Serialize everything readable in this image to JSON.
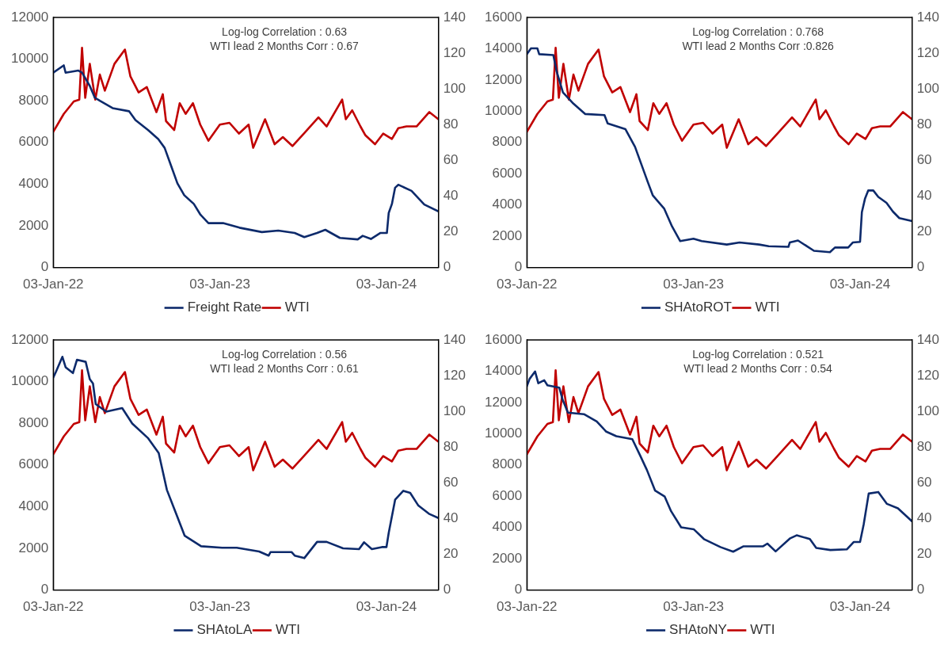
{
  "chart_data": [
    {
      "type": "line",
      "annotations": [
        "Log-log Correlation : 0.63",
        "WTI lead 2 Months Corr : 0.67"
      ],
      "legend": "bottom",
      "grid": false,
      "marker": "none",
      "line_style": "solid",
      "xlim": [
        "2022-01-03",
        "2024-04-26"
      ],
      "xticks": [
        {
          "value": "2022-01-03",
          "label": "03-Jan-22"
        },
        {
          "value": "2023-01-03",
          "label": "03-Jan-23"
        },
        {
          "value": "2024-01-03",
          "label": "03-Jan-24"
        }
      ],
      "ylim": [
        0,
        12000
      ],
      "yticks": [
        0,
        2000,
        4000,
        6000,
        8000,
        10000,
        12000
      ],
      "y2lim": [
        0,
        140
      ],
      "y2ticks": [
        0,
        20,
        40,
        60,
        80,
        100,
        120,
        140
      ],
      "series": [
        {
          "name": "Freight Rate",
          "color": "#0d2a6b",
          "x": [
            "2022-01-03",
            "2022-01-26",
            "2022-01-30",
            "2022-02-27",
            "2022-03-07",
            "2022-03-24",
            "2022-04-04",
            "2022-04-15",
            "2022-05-13",
            "2022-06-18",
            "2022-07-02",
            "2022-07-30",
            "2022-08-21",
            "2022-09-04",
            "2022-09-18",
            "2022-10-02",
            "2022-10-17",
            "2022-11-07",
            "2022-11-21",
            "2022-12-09",
            "2023-01-10",
            "2023-02-15",
            "2023-04-05",
            "2023-05-11",
            "2023-06-16",
            "2023-07-07",
            "2023-08-04",
            "2023-08-22",
            "2023-09-23",
            "2023-11-01",
            "2023-11-12",
            "2023-11-30",
            "2023-12-21",
            "2024-01-04",
            "2024-01-08",
            "2024-01-15",
            "2024-01-22",
            "2024-01-29",
            "2024-02-27",
            "2024-03-26",
            "2024-04-26"
          ],
          "values": [
            9350,
            9700,
            9350,
            9450,
            9350,
            8710,
            8150,
            8000,
            7650,
            7500,
            7080,
            6590,
            6160,
            5740,
            4890,
            4040,
            3470,
            3050,
            2550,
            2130,
            2130,
            1910,
            1700,
            1770,
            1660,
            1460,
            1660,
            1810,
            1420,
            1350,
            1520,
            1370,
            1660,
            1660,
            2620,
            3050,
            3830,
            3970,
            3680,
            3020,
            2690
          ]
        },
        {
          "name": "WTI",
          "color": "#c00000",
          "axis": "y2",
          "x": [
            "2022-01-03",
            "2022-01-26",
            "2022-02-17",
            "2022-03-01",
            "2022-03-07",
            "2022-03-14",
            "2022-03-24",
            "2022-04-05",
            "2022-04-15",
            "2022-04-26",
            "2022-05-17",
            "2022-06-09",
            "2022-06-21",
            "2022-07-09",
            "2022-07-27",
            "2022-08-17",
            "2022-08-31",
            "2022-09-07",
            "2022-09-25",
            "2022-10-07",
            "2022-10-20",
            "2022-11-05",
            "2022-11-21",
            "2022-12-09",
            "2023-01-03",
            "2023-01-24",
            "2023-02-14",
            "2023-03-07",
            "2023-03-17",
            "2023-04-12",
            "2023-05-03",
            "2023-05-21",
            "2023-06-11",
            "2023-07-06",
            "2023-08-07",
            "2023-08-25",
            "2023-09-28",
            "2023-10-06",
            "2023-10-20",
            "2023-11-07",
            "2023-11-18",
            "2023-12-09",
            "2023-12-27",
            "2024-01-15",
            "2024-01-29",
            "2024-02-16",
            "2024-03-09",
            "2024-04-06",
            "2024-04-26"
          ],
          "values": [
            76,
            86,
            93,
            94,
            123,
            95,
            114,
            94,
            108,
            99,
            114,
            122,
            107,
            98,
            101,
            87,
            97,
            82,
            77,
            92,
            86,
            92,
            80,
            71,
            80,
            81,
            75,
            80,
            67,
            83,
            69,
            73,
            68,
            75,
            84,
            79,
            94,
            83,
            88,
            79,
            74,
            69,
            75,
            72,
            78,
            79,
            79,
            87,
            83
          ]
        }
      ]
    },
    {
      "type": "line",
      "annotations": [
        "Log-log Correlation : 0.768",
        "WTI lead 2 Months Corr :0.826"
      ],
      "legend": "bottom",
      "grid": false,
      "marker": "none",
      "line_style": "solid",
      "xlim": [
        "2022-01-03",
        "2024-04-26"
      ],
      "xticks": [
        {
          "value": "2022-01-03",
          "label": "03-Jan-22"
        },
        {
          "value": "2023-01-03",
          "label": "03-Jan-23"
        },
        {
          "value": "2024-01-03",
          "label": "03-Jan-24"
        }
      ],
      "ylim": [
        0,
        16000
      ],
      "yticks": [
        0,
        2000,
        4000,
        6000,
        8000,
        10000,
        12000,
        14000,
        16000
      ],
      "y2lim": [
        0,
        140
      ],
      "y2ticks": [
        0,
        20,
        40,
        60,
        80,
        100,
        120,
        140
      ],
      "series": [
        {
          "name": "SHAtoROT",
          "color": "#0d2a6b",
          "x": [
            "2022-01-03",
            "2022-01-12",
            "2022-01-26",
            "2022-01-30",
            "2022-03-02",
            "2022-03-09",
            "2022-03-23",
            "2022-04-13",
            "2022-05-11",
            "2022-06-22",
            "2022-06-29",
            "2022-08-07",
            "2022-08-28",
            "2022-09-11",
            "2022-09-25",
            "2022-10-06",
            "2022-10-31",
            "2022-11-17",
            "2022-12-05",
            "2023-01-03",
            "2023-01-21",
            "2023-03-17",
            "2023-04-14",
            "2023-05-27",
            "2023-06-17",
            "2023-07-30",
            "2023-08-02",
            "2023-08-20",
            "2023-09-24",
            "2023-10-29",
            "2023-11-09",
            "2023-12-08",
            "2023-12-18",
            "2024-01-03",
            "2024-01-07",
            "2024-01-14",
            "2024-01-21",
            "2024-02-01",
            "2024-02-12",
            "2024-03-01",
            "2024-03-15",
            "2024-03-29",
            "2024-04-26"
          ],
          "values": [
            13650,
            14020,
            14020,
            13650,
            13590,
            12570,
            11200,
            10540,
            9820,
            9750,
            9220,
            8850,
            7720,
            6590,
            5460,
            4610,
            3760,
            2630,
            1690,
            1840,
            1690,
            1470,
            1600,
            1470,
            1360,
            1320,
            1600,
            1730,
            1070,
            980,
            1280,
            1280,
            1600,
            1640,
            3540,
            4420,
            4930,
            4930,
            4520,
            4140,
            3580,
            3160,
            2970
          ]
        },
        {
          "name": "WTI",
          "color": "#c00000",
          "axis": "y2",
          "x": [
            "2022-01-03",
            "2022-01-26",
            "2022-02-17",
            "2022-03-01",
            "2022-03-07",
            "2022-03-14",
            "2022-03-24",
            "2022-04-05",
            "2022-04-15",
            "2022-04-26",
            "2022-05-17",
            "2022-06-09",
            "2022-06-21",
            "2022-07-09",
            "2022-07-27",
            "2022-08-17",
            "2022-08-31",
            "2022-09-07",
            "2022-09-25",
            "2022-10-07",
            "2022-10-20",
            "2022-11-05",
            "2022-11-21",
            "2022-12-09",
            "2023-01-03",
            "2023-01-24",
            "2023-02-14",
            "2023-03-07",
            "2023-03-17",
            "2023-04-12",
            "2023-05-03",
            "2023-05-21",
            "2023-06-11",
            "2023-07-06",
            "2023-08-07",
            "2023-08-25",
            "2023-09-28",
            "2023-10-06",
            "2023-10-20",
            "2023-11-07",
            "2023-11-18",
            "2023-12-09",
            "2023-12-27",
            "2024-01-15",
            "2024-01-29",
            "2024-02-16",
            "2024-03-09",
            "2024-04-06",
            "2024-04-26"
          ],
          "values": [
            76,
            86,
            93,
            94,
            123,
            95,
            114,
            94,
            108,
            99,
            114,
            122,
            107,
            98,
            101,
            87,
            97,
            82,
            77,
            92,
            86,
            92,
            80,
            71,
            80,
            81,
            75,
            80,
            67,
            83,
            69,
            73,
            68,
            75,
            84,
            79,
            94,
            83,
            88,
            79,
            74,
            69,
            75,
            72,
            78,
            79,
            79,
            87,
            83
          ]
        }
      ]
    },
    {
      "type": "line",
      "annotations": [
        "Log-log Correlation : 0.56",
        "WTI lead 2 Months Corr : 0.61"
      ],
      "legend": "bottom",
      "grid": false,
      "marker": "none",
      "line_style": "solid",
      "xlim": [
        "2022-01-03",
        "2024-04-26"
      ],
      "xticks": [
        {
          "value": "2022-01-03",
          "label": "03-Jan-22"
        },
        {
          "value": "2023-01-03",
          "label": "03-Jan-23"
        },
        {
          "value": "2024-01-03",
          "label": "03-Jan-24"
        }
      ],
      "ylim": [
        0,
        12000
      ],
      "yticks": [
        0,
        2000,
        4000,
        6000,
        8000,
        10000,
        12000
      ],
      "y2lim": [
        0,
        140
      ],
      "y2ticks": [
        0,
        20,
        40,
        60,
        80,
        100,
        120,
        140
      ],
      "series": [
        {
          "name": "SHAtoLA",
          "color": "#0d2a6b",
          "x": [
            "2022-01-03",
            "2022-01-09",
            "2022-01-23",
            "2022-01-30",
            "2022-02-15",
            "2022-02-24",
            "2022-03-15",
            "2022-03-24",
            "2022-03-31",
            "2022-04-06",
            "2022-04-29",
            "2022-06-03",
            "2022-06-25",
            "2022-07-30",
            "2022-08-22",
            "2022-09-09",
            "2022-09-28",
            "2022-10-18",
            "2022-11-23",
            "2023-01-08",
            "2023-02-09",
            "2023-03-30",
            "2023-04-20",
            "2023-04-24",
            "2023-06-09",
            "2023-06-16",
            "2023-07-07",
            "2023-08-04",
            "2023-08-25",
            "2023-09-30",
            "2023-11-04",
            "2023-11-15",
            "2023-12-02",
            "2023-12-24",
            "2024-01-03",
            "2024-01-08",
            "2024-01-22",
            "2024-02-09",
            "2024-02-24",
            "2024-03-13",
            "2024-04-05",
            "2024-04-26"
          ],
          "values": [
            10200,
            10480,
            11190,
            10690,
            10410,
            11050,
            10950,
            10120,
            9910,
            8920,
            8560,
            8730,
            7990,
            7280,
            6570,
            4800,
            3730,
            2600,
            2100,
            2030,
            2030,
            1850,
            1650,
            1820,
            1820,
            1650,
            1530,
            2310,
            2310,
            2000,
            1960,
            2290,
            1960,
            2060,
            2060,
            2740,
            4330,
            4760,
            4660,
            4050,
            3660,
            3450
          ]
        },
        {
          "name": "WTI",
          "color": "#c00000",
          "axis": "y2",
          "x": [
            "2022-01-03",
            "2022-01-26",
            "2022-02-17",
            "2022-03-01",
            "2022-03-07",
            "2022-03-14",
            "2022-03-24",
            "2022-04-05",
            "2022-04-15",
            "2022-04-26",
            "2022-05-17",
            "2022-06-09",
            "2022-06-21",
            "2022-07-09",
            "2022-07-27",
            "2022-08-17",
            "2022-08-31",
            "2022-09-07",
            "2022-09-25",
            "2022-10-07",
            "2022-10-20",
            "2022-11-05",
            "2022-11-21",
            "2022-12-09",
            "2023-01-03",
            "2023-01-24",
            "2023-02-14",
            "2023-03-07",
            "2023-03-17",
            "2023-04-12",
            "2023-05-03",
            "2023-05-21",
            "2023-06-11",
            "2023-07-06",
            "2023-08-07",
            "2023-08-25",
            "2023-09-28",
            "2023-10-06",
            "2023-10-20",
            "2023-11-07",
            "2023-11-18",
            "2023-12-09",
            "2023-12-27",
            "2024-01-15",
            "2024-01-29",
            "2024-02-16",
            "2024-03-09",
            "2024-04-06",
            "2024-04-26"
          ],
          "values": [
            76,
            86,
            93,
            94,
            123,
            95,
            114,
            94,
            108,
            99,
            114,
            122,
            107,
            98,
            101,
            87,
            97,
            82,
            77,
            92,
            86,
            92,
            80,
            71,
            80,
            81,
            75,
            80,
            67,
            83,
            69,
            73,
            68,
            75,
            84,
            79,
            94,
            83,
            88,
            79,
            74,
            69,
            75,
            72,
            78,
            79,
            79,
            87,
            83
          ]
        }
      ]
    },
    {
      "type": "line",
      "annotations": [
        "Log-log Correlation : 0.521",
        "WTI lead 2 Months Corr : 0.54"
      ],
      "legend": "bottom",
      "grid": false,
      "marker": "none",
      "line_style": "solid",
      "xlim": [
        "2022-01-03",
        "2024-04-26"
      ],
      "xticks": [
        {
          "value": "2022-01-03",
          "label": "03-Jan-22"
        },
        {
          "value": "2023-01-03",
          "label": "03-Jan-23"
        },
        {
          "value": "2024-01-03",
          "label": "03-Jan-24"
        }
      ],
      "ylim": [
        0,
        16000
      ],
      "yticks": [
        0,
        2000,
        4000,
        6000,
        8000,
        10000,
        12000,
        14000,
        16000
      ],
      "y2lim": [
        0,
        140
      ],
      "y2ticks": [
        0,
        20,
        40,
        60,
        80,
        100,
        120,
        140
      ],
      "series": [
        {
          "name": "SHAtoNY",
          "color": "#0d2a6b",
          "x": [
            "2022-01-03",
            "2022-01-09",
            "2022-01-21",
            "2022-01-28",
            "2022-02-10",
            "2022-02-17",
            "2022-03-15",
            "2022-03-22",
            "2022-04-03",
            "2022-05-08",
            "2022-06-05",
            "2022-06-26",
            "2022-07-18",
            "2022-08-22",
            "2022-09-08",
            "2022-09-23",
            "2022-10-11",
            "2022-11-01",
            "2022-11-15",
            "2022-12-07",
            "2023-01-04",
            "2023-01-26",
            "2023-03-03",
            "2023-03-31",
            "2023-04-22",
            "2023-06-04",
            "2023-06-14",
            "2023-07-02",
            "2023-08-03",
            "2023-08-17",
            "2023-09-15",
            "2023-09-29",
            "2023-10-30",
            "2023-12-05",
            "2023-12-20",
            "2024-01-03",
            "2024-01-11",
            "2024-01-22",
            "2024-02-12",
            "2024-03-02",
            "2024-03-26",
            "2024-04-26"
          ],
          "values": [
            13040,
            13510,
            13980,
            13230,
            13420,
            13100,
            12950,
            12200,
            11350,
            11250,
            10780,
            10130,
            9840,
            9650,
            8620,
            7680,
            6360,
            5980,
            5040,
            4010,
            3880,
            3260,
            2750,
            2450,
            2790,
            2790,
            2970,
            2470,
            3310,
            3500,
            3260,
            2690,
            2560,
            2600,
            3070,
            3070,
            4200,
            6170,
            6270,
            5510,
            5230,
            4390
          ]
        },
        {
          "name": "WTI",
          "color": "#c00000",
          "axis": "y2",
          "x": [
            "2022-01-03",
            "2022-01-26",
            "2022-02-17",
            "2022-03-01",
            "2022-03-07",
            "2022-03-14",
            "2022-03-24",
            "2022-04-05",
            "2022-04-15",
            "2022-04-26",
            "2022-05-17",
            "2022-06-09",
            "2022-06-21",
            "2022-07-09",
            "2022-07-27",
            "2022-08-17",
            "2022-08-31",
            "2022-09-07",
            "2022-09-25",
            "2022-10-07",
            "2022-10-20",
            "2022-11-05",
            "2022-11-21",
            "2022-12-09",
            "2023-01-03",
            "2023-01-24",
            "2023-02-14",
            "2023-03-07",
            "2023-03-17",
            "2023-04-12",
            "2023-05-03",
            "2023-05-21",
            "2023-06-11",
            "2023-07-06",
            "2023-08-07",
            "2023-08-25",
            "2023-09-28",
            "2023-10-06",
            "2023-10-20",
            "2023-11-07",
            "2023-11-18",
            "2023-12-09",
            "2023-12-27",
            "2024-01-15",
            "2024-01-29",
            "2024-02-16",
            "2024-03-09",
            "2024-04-06",
            "2024-04-26"
          ],
          "values": [
            76,
            86,
            93,
            94,
            123,
            95,
            114,
            94,
            108,
            99,
            114,
            122,
            107,
            98,
            101,
            87,
            97,
            82,
            77,
            92,
            86,
            92,
            80,
            71,
            80,
            81,
            75,
            80,
            67,
            83,
            69,
            73,
            68,
            75,
            84,
            79,
            94,
            83,
            88,
            79,
            74,
            69,
            75,
            72,
            78,
            79,
            79,
            87,
            83
          ]
        }
      ]
    }
  ]
}
